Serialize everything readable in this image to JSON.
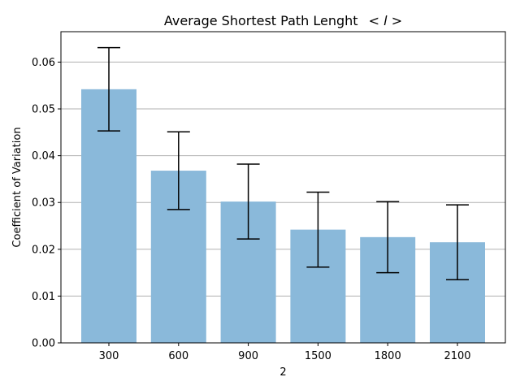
{
  "chart_data": {
    "type": "bar",
    "title": "Average Shortest Path Lenght",
    "title_math": "< l >",
    "xlabel": "2",
    "ylabel": "Coefficient of Variation",
    "categories": [
      "300",
      "600",
      "900",
      "1500",
      "1800",
      "2100"
    ],
    "values": [
      0.0542,
      0.0368,
      0.0302,
      0.0242,
      0.0226,
      0.0215
    ],
    "errors": [
      0.0089,
      0.0083,
      0.008,
      0.008,
      0.0076,
      0.008
    ],
    "ylim": [
      0,
      0.0665
    ],
    "yticks": [
      0.0,
      0.01,
      0.02,
      0.03,
      0.04,
      0.05,
      0.06
    ],
    "ytick_labels": [
      "0.00",
      "0.01",
      "0.02",
      "0.03",
      "0.04",
      "0.05",
      "0.06"
    ],
    "grid": "y-axis horizontal lines",
    "colors": {
      "bar": "#8ab9da",
      "grid": "#b0b0b0",
      "error": "#000000",
      "axis": "#000000"
    }
  }
}
